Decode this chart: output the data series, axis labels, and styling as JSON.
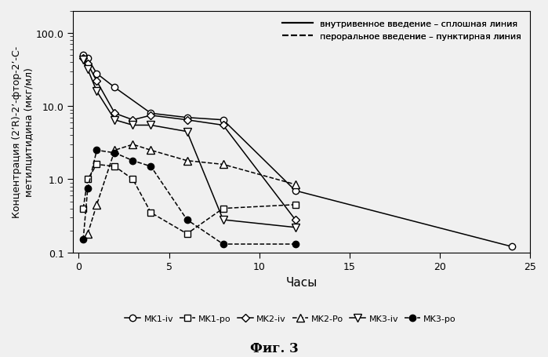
{
  "title": "Фиг. 3",
  "ylabel": "Концентрация (2’R)-2’-фтор-2’-С-\nметилцитидина (мкг/мл)",
  "xlabel": "Часы",
  "legend_iv": "внутривенное введение – сплошная линия",
  "legend_po": "пероральное введение – пунктирная линия",
  "MK1_iv_x": [
    0.25,
    0.5,
    1,
    2,
    4,
    6,
    8,
    12,
    24
  ],
  "MK1_iv_y": [
    50,
    45,
    28,
    18,
    8,
    7,
    6.5,
    0.7,
    0.12
  ],
  "MK1_po_x": [
    0.25,
    0.5,
    1,
    2,
    3,
    4,
    6,
    8,
    12
  ],
  "MK1_po_y": [
    0.4,
    1.0,
    1.6,
    1.5,
    1.0,
    0.35,
    0.18,
    0.4,
    0.45
  ],
  "MK2_iv_x": [
    0.25,
    0.5,
    1,
    2,
    3,
    4,
    6,
    8,
    12
  ],
  "MK2_iv_y": [
    45,
    38,
    22,
    8,
    6.5,
    7.5,
    6.5,
    5.5,
    0.28
  ],
  "MK2_Po_x": [
    0.5,
    1,
    2,
    3,
    4,
    6,
    8,
    12
  ],
  "MK2_Po_y": [
    0.18,
    0.45,
    2.5,
    3.0,
    2.5,
    1.8,
    1.6,
    0.85
  ],
  "MK3_iv_x": [
    0.25,
    0.5,
    1,
    2,
    3,
    4,
    6,
    8,
    12
  ],
  "MK3_iv_y": [
    43,
    32,
    16,
    6.5,
    5.5,
    5.5,
    4.5,
    0.28,
    0.22
  ],
  "MK3_po_x": [
    0.25,
    0.5,
    1,
    2,
    3,
    4,
    6,
    8,
    12
  ],
  "MK3_po_y": [
    0.15,
    0.75,
    2.5,
    2.3,
    1.8,
    1.5,
    0.28,
    0.13,
    0.13
  ],
  "ylim": [
    0.1,
    200.0
  ],
  "xlim": [
    -0.3,
    25
  ],
  "xticks": [
    0,
    5,
    10,
    15,
    20,
    25
  ],
  "figsize": [
    6.99,
    4.56
  ],
  "dpi": 100
}
